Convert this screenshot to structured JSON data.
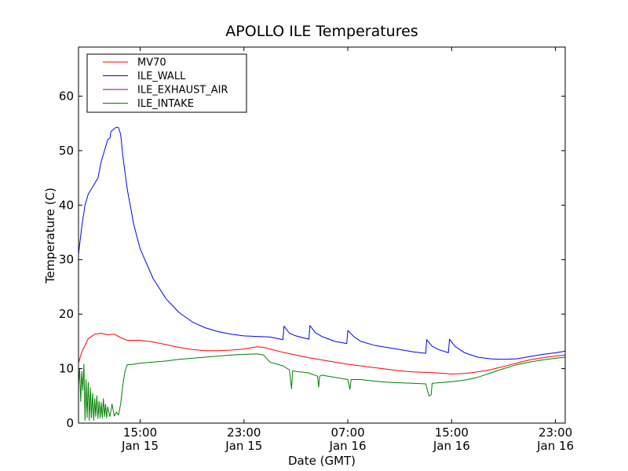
{
  "chart_data": {
    "type": "line",
    "title": "APOLLO ILE Temperatures",
    "xlabel": "Date (GMT)",
    "ylabel": "Temperature (C)",
    "ylim": [
      0,
      69
    ],
    "yticks": [
      0,
      10,
      20,
      30,
      40,
      50,
      60
    ],
    "xlim": [
      "2015-01-15 10:15",
      "2015-01-16 23:45"
    ],
    "xticks": [
      {
        "t": "2015-01-15 15:00",
        "time": "15:00",
        "date": "Jan 15"
      },
      {
        "t": "2015-01-15 23:00",
        "time": "23:00",
        "date": "Jan 15"
      },
      {
        "t": "2015-01-16 07:00",
        "time": "07:00",
        "date": "Jan 16"
      },
      {
        "t": "2015-01-16 15:00",
        "time": "15:00",
        "date": "Jan 16"
      },
      {
        "t": "2015-01-16 23:00",
        "time": "23:00",
        "date": "Jan 16"
      }
    ],
    "grid": false,
    "legend_position": "top-left",
    "series": [
      {
        "name": "MV70",
        "color": "#ff0000",
        "points": [
          [
            "2015-01-15 10:15",
            11
          ],
          [
            "2015-01-15 10:30",
            13
          ],
          [
            "2015-01-15 11:00",
            15.5
          ],
          [
            "2015-01-15 11:30",
            16.3
          ],
          [
            "2015-01-15 12:00",
            16.5
          ],
          [
            "2015-01-15 12:30",
            16.2
          ],
          [
            "2015-01-15 13:00",
            16.3
          ],
          [
            "2015-01-15 13:30",
            15.7
          ],
          [
            "2015-01-15 14:00",
            15.2
          ],
          [
            "2015-01-15 15:00",
            15.2
          ],
          [
            "2015-01-15 16:00",
            14.9
          ],
          [
            "2015-01-15 17:00",
            14.4
          ],
          [
            "2015-01-15 18:00",
            13.9
          ],
          [
            "2015-01-15 19:00",
            13.5
          ],
          [
            "2015-01-15 20:00",
            13.3
          ],
          [
            "2015-01-15 21:00",
            13.3
          ],
          [
            "2015-01-15 22:00",
            13.4
          ],
          [
            "2015-01-15 23:00",
            13.6
          ],
          [
            "2015-01-16 00:00",
            14.0
          ],
          [
            "2015-01-16 00:30",
            13.9
          ],
          [
            "2015-01-16 01:00",
            13.6
          ],
          [
            "2015-01-16 02:00",
            13.0
          ],
          [
            "2015-01-16 03:00",
            12.5
          ],
          [
            "2015-01-16 04:00",
            12.0
          ],
          [
            "2015-01-16 05:00",
            11.6
          ],
          [
            "2015-01-16 06:00",
            11.2
          ],
          [
            "2015-01-16 07:00",
            10.8
          ],
          [
            "2015-01-16 08:00",
            10.5
          ],
          [
            "2015-01-16 09:00",
            10.2
          ],
          [
            "2015-01-16 10:00",
            9.9
          ],
          [
            "2015-01-16 11:00",
            9.6
          ],
          [
            "2015-01-16 12:00",
            9.4
          ],
          [
            "2015-01-16 13:00",
            9.3
          ],
          [
            "2015-01-16 14:00",
            9.2
          ],
          [
            "2015-01-16 15:00",
            9.0
          ],
          [
            "2015-01-16 16:00",
            9.1
          ],
          [
            "2015-01-16 17:00",
            9.4
          ],
          [
            "2015-01-16 18:00",
            9.8
          ],
          [
            "2015-01-16 19:00",
            10.4
          ],
          [
            "2015-01-16 20:00",
            11.0
          ],
          [
            "2015-01-16 21:00",
            11.6
          ],
          [
            "2015-01-16 22:00",
            12.0
          ],
          [
            "2015-01-16 23:00",
            12.3
          ],
          [
            "2015-01-16 23:45",
            12.5
          ]
        ]
      },
      {
        "name": "ILE_WALL",
        "color": "#0000ff",
        "points": [
          [
            "2015-01-15 10:15",
            31
          ],
          [
            "2015-01-15 10:30",
            36
          ],
          [
            "2015-01-15 10:45",
            40
          ],
          [
            "2015-01-15 11:00",
            42
          ],
          [
            "2015-01-15 11:30",
            44
          ],
          [
            "2015-01-15 11:45",
            45
          ],
          [
            "2015-01-15 12:00",
            48
          ],
          [
            "2015-01-15 12:15",
            50
          ],
          [
            "2015-01-15 12:30",
            52
          ],
          [
            "2015-01-15 12:40",
            52.3
          ],
          [
            "2015-01-15 12:45",
            53.5
          ],
          [
            "2015-01-15 13:00",
            54
          ],
          [
            "2015-01-15 13:10",
            54.3
          ],
          [
            "2015-01-15 13:20",
            54.2
          ],
          [
            "2015-01-15 13:30",
            53
          ],
          [
            "2015-01-15 13:40",
            49
          ],
          [
            "2015-01-15 14:00",
            43
          ],
          [
            "2015-01-15 14:30",
            36.5
          ],
          [
            "2015-01-15 15:00",
            32
          ],
          [
            "2015-01-15 16:00",
            26.5
          ],
          [
            "2015-01-15 17:00",
            22.8
          ],
          [
            "2015-01-15 18:00",
            20.3
          ],
          [
            "2015-01-15 19:00",
            18.6
          ],
          [
            "2015-01-15 20:00",
            17.5
          ],
          [
            "2015-01-15 21:00",
            16.8
          ],
          [
            "2015-01-15 22:00",
            16.3
          ],
          [
            "2015-01-15 23:00",
            16.0
          ],
          [
            "2015-01-16 00:00",
            15.9
          ],
          [
            "2015-01-16 01:00",
            15.8
          ],
          [
            "2015-01-16 02:00",
            15.3
          ],
          [
            "2015-01-16 02:05",
            17.8
          ],
          [
            "2015-01-16 02:30",
            16.5
          ],
          [
            "2015-01-16 03:00",
            16.0
          ],
          [
            "2015-01-16 04:00",
            15.4
          ],
          [
            "2015-01-16 04:05",
            17.9
          ],
          [
            "2015-01-16 04:30",
            16.6
          ],
          [
            "2015-01-16 05:00",
            15.9
          ],
          [
            "2015-01-16 06:00",
            15.0
          ],
          [
            "2015-01-16 06:55",
            14.6
          ],
          [
            "2015-01-16 07:00",
            17.0
          ],
          [
            "2015-01-16 07:30",
            15.8
          ],
          [
            "2015-01-16 08:00",
            15.0
          ],
          [
            "2015-01-16 09:00",
            14.3
          ],
          [
            "2015-01-16 10:00",
            13.9
          ],
          [
            "2015-01-16 11:00",
            13.5
          ],
          [
            "2015-01-16 12:00",
            13.1
          ],
          [
            "2015-01-16 13:00",
            12.8
          ],
          [
            "2015-01-16 13:05",
            15.3
          ],
          [
            "2015-01-16 13:30",
            14.1
          ],
          [
            "2015-01-16 14:00",
            13.5
          ],
          [
            "2015-01-16 14:45",
            12.9
          ],
          [
            "2015-01-16 14:50",
            15.4
          ],
          [
            "2015-01-16 15:15",
            14.1
          ],
          [
            "2015-01-16 16:00",
            12.9
          ],
          [
            "2015-01-16 17:00",
            12.1
          ],
          [
            "2015-01-16 18:00",
            11.8
          ],
          [
            "2015-01-16 19:00",
            11.7
          ],
          [
            "2015-01-16 20:00",
            11.8
          ],
          [
            "2015-01-16 21:00",
            12.2
          ],
          [
            "2015-01-16 22:00",
            12.6
          ],
          [
            "2015-01-16 23:00",
            12.9
          ],
          [
            "2015-01-16 23:45",
            13.2
          ]
        ]
      },
      {
        "name": "ILE_EXHAUST_AIR",
        "color": "#800080",
        "points": []
      },
      {
        "name": "ILE_INTAKE",
        "color": "#008000",
        "points": [
          [
            "2015-01-15 10:15",
            7
          ],
          [
            "2015-01-15 10:20",
            10
          ],
          [
            "2015-01-15 10:25",
            4
          ],
          [
            "2015-01-15 10:30",
            9.5
          ],
          [
            "2015-01-15 10:35",
            6
          ],
          [
            "2015-01-15 10:40",
            10.8
          ],
          [
            "2015-01-15 10:45",
            0.5
          ],
          [
            "2015-01-15 10:50",
            8
          ],
          [
            "2015-01-15 10:55",
            1
          ],
          [
            "2015-01-15 11:00",
            7.5
          ],
          [
            "2015-01-15 11:05",
            0.5
          ],
          [
            "2015-01-15 11:10",
            6.5
          ],
          [
            "2015-01-15 11:15",
            1
          ],
          [
            "2015-01-15 11:20",
            5.5
          ],
          [
            "2015-01-15 11:25",
            0.5
          ],
          [
            "2015-01-15 11:30",
            4.5
          ],
          [
            "2015-01-15 11:35",
            1.2
          ],
          [
            "2015-01-15 11:40",
            5
          ],
          [
            "2015-01-15 11:45",
            0.8
          ],
          [
            "2015-01-15 11:50",
            4
          ],
          [
            "2015-01-15 11:55",
            1
          ],
          [
            "2015-01-15 12:00",
            3.8
          ],
          [
            "2015-01-15 12:05",
            1
          ],
          [
            "2015-01-15 12:10",
            4.5
          ],
          [
            "2015-01-15 12:15",
            1.2
          ],
          [
            "2015-01-15 12:20",
            3.5
          ],
          [
            "2015-01-15 12:25",
            1
          ],
          [
            "2015-01-15 12:30",
            3
          ],
          [
            "2015-01-15 12:40",
            1.2
          ],
          [
            "2015-01-15 12:50",
            3.5
          ],
          [
            "2015-01-15 13:00",
            1.3
          ],
          [
            "2015-01-15 13:10",
            2
          ],
          [
            "2015-01-15 13:20",
            1.5
          ],
          [
            "2015-01-15 13:30",
            3.5
          ],
          [
            "2015-01-15 13:40",
            7
          ],
          [
            "2015-01-15 13:50",
            9.5
          ],
          [
            "2015-01-15 14:00",
            10.7
          ],
          [
            "2015-01-15 14:30",
            10.8
          ],
          [
            "2015-01-15 15:00",
            11.0
          ],
          [
            "2015-01-15 16:00",
            11.2
          ],
          [
            "2015-01-15 17:00",
            11.4
          ],
          [
            "2015-01-15 18:00",
            11.7
          ],
          [
            "2015-01-15 19:00",
            11.9
          ],
          [
            "2015-01-15 20:00",
            12.1
          ],
          [
            "2015-01-15 21:00",
            12.3
          ],
          [
            "2015-01-15 22:00",
            12.5
          ],
          [
            "2015-01-15 23:00",
            12.6
          ],
          [
            "2015-01-16 00:00",
            12.7
          ],
          [
            "2015-01-16 00:30",
            12.5
          ],
          [
            "2015-01-16 01:00",
            11.2
          ],
          [
            "2015-01-16 02:00",
            10.5
          ],
          [
            "2015-01-16 02:30",
            9.8
          ],
          [
            "2015-01-16 02:40",
            6.3
          ],
          [
            "2015-01-16 02:45",
            9.6
          ],
          [
            "2015-01-16 03:00",
            9.5
          ],
          [
            "2015-01-16 04:00",
            9.2
          ],
          [
            "2015-01-16 04:40",
            8.6
          ],
          [
            "2015-01-16 04:45",
            6.6
          ],
          [
            "2015-01-16 04:50",
            8.6
          ],
          [
            "2015-01-16 05:00",
            8.8
          ],
          [
            "2015-01-16 06:00",
            8.4
          ],
          [
            "2015-01-16 07:00",
            8.0
          ],
          [
            "2015-01-16 07:10",
            6.2
          ],
          [
            "2015-01-16 07:15",
            8.0
          ],
          [
            "2015-01-16 08:00",
            8.0
          ],
          [
            "2015-01-16 09:00",
            7.7
          ],
          [
            "2015-01-16 10:00",
            7.5
          ],
          [
            "2015-01-16 11:00",
            7.4
          ],
          [
            "2015-01-16 12:00",
            7.3
          ],
          [
            "2015-01-16 13:00",
            7.2
          ],
          [
            "2015-01-16 13:15",
            5.0
          ],
          [
            "2015-01-16 13:25",
            5.2
          ],
          [
            "2015-01-16 13:30",
            7.3
          ],
          [
            "2015-01-16 14:00",
            7.4
          ],
          [
            "2015-01-16 15:00",
            7.6
          ],
          [
            "2015-01-16 16:00",
            7.9
          ],
          [
            "2015-01-16 17:00",
            8.4
          ],
          [
            "2015-01-16 18:00",
            9.2
          ],
          [
            "2015-01-16 19:00",
            10.0
          ],
          [
            "2015-01-16 20:00",
            10.7
          ],
          [
            "2015-01-16 21:00",
            11.2
          ],
          [
            "2015-01-16 22:00",
            11.6
          ],
          [
            "2015-01-16 23:00",
            11.9
          ],
          [
            "2015-01-16 23:45",
            12.1
          ]
        ]
      }
    ]
  }
}
